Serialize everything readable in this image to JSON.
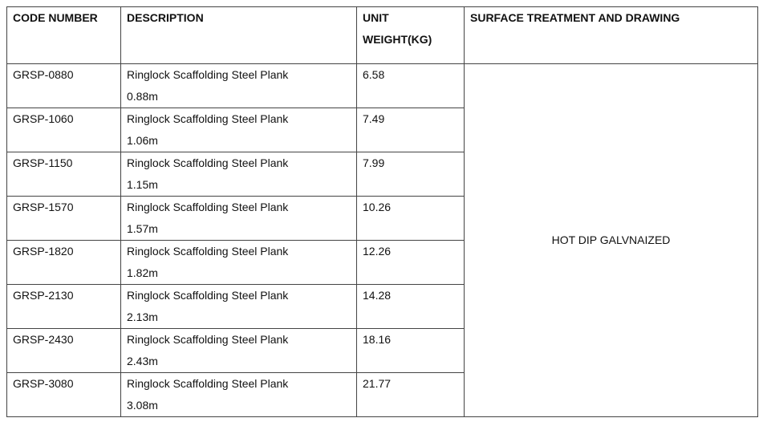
{
  "table": {
    "headers": [
      [
        "CODE NUMBER"
      ],
      [
        "DESCRIPTION"
      ],
      [
        "UNIT",
        "WEIGHT(KG)"
      ],
      [
        "SURFACE TREATMENT AND DRAWING"
      ]
    ],
    "rows": [
      {
        "code": "GRSP-0880",
        "description": [
          "Ringlock Scaffolding Steel Plank",
          "0.88m"
        ],
        "weight": 6.58
      },
      {
        "code": "GRSP-1060",
        "description": [
          "Ringlock Scaffolding Steel Plank",
          "1.06m"
        ],
        "weight": 7.49
      },
      {
        "code": "GRSP-1150",
        "description": [
          "Ringlock Scaffolding Steel Plank",
          "1.15m"
        ],
        "weight": 7.99
      },
      {
        "code": "GRSP-1570",
        "description": [
          "Ringlock Scaffolding Steel Plank",
          "1.57m"
        ],
        "weight": 10.26
      },
      {
        "code": "GRSP-1820",
        "description": [
          "Ringlock Scaffolding Steel Plank",
          "1.82m"
        ],
        "weight": 12.26
      },
      {
        "code": "GRSP-2130",
        "description": [
          "Ringlock Scaffolding Steel Plank",
          "2.13m"
        ],
        "weight": 14.28
      },
      {
        "code": "GRSP-2430",
        "description": [
          "Ringlock Scaffolding Steel Plank",
          "2.43m"
        ],
        "weight": 18.16
      },
      {
        "code": "GRSP-3080",
        "description": [
          "Ringlock Scaffolding Steel Plank",
          "3.08m"
        ],
        "weight": 21.77
      }
    ],
    "surface_treatment": "HOT DIP GALVNAIZED"
  }
}
